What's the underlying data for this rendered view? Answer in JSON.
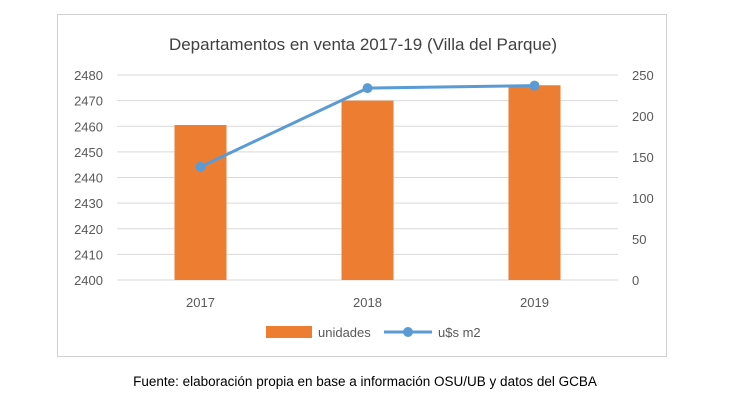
{
  "chart_data": {
    "type": "bar",
    "title": "Departamentos  en venta 2017-19 (Villa del Parque)",
    "categories": [
      "2017",
      "2018",
      "2019"
    ],
    "series": [
      {
        "name": "unidades",
        "type": "bar",
        "axis": "left",
        "color": "#ed7d31",
        "values": [
          2460.5,
          2470,
          2476
        ]
      },
      {
        "name": "u$s m2",
        "type": "line",
        "axis": "right",
        "color": "#5b9bd5",
        "values": [
          138,
          234,
          237
        ]
      }
    ],
    "y_left": {
      "min": 2400,
      "max": 2480,
      "ticks": [
        2400,
        2410,
        2420,
        2430,
        2440,
        2450,
        2460,
        2470,
        2480
      ]
    },
    "y_right": {
      "min": 0,
      "max": 250,
      "ticks": [
        0,
        50,
        100,
        150,
        200,
        250
      ]
    },
    "grid": true,
    "legend": "bottom"
  },
  "footer": {
    "source": "Fuente: elaboración propia en base a información OSU/UB y datos del GCBA"
  }
}
